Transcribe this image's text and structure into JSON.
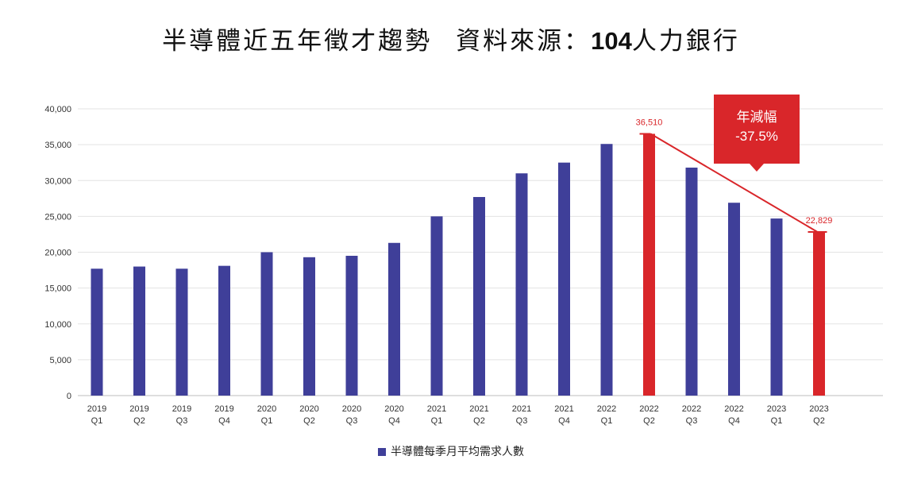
{
  "title": {
    "main": "半導體近五年徵才趨勢",
    "source_label": "資料來源：",
    "source_number": "104",
    "source_name": "人力銀行"
  },
  "chart_data": {
    "type": "bar",
    "title": "半導體近五年徵才趨勢 資料來源：104人力銀行",
    "xlabel": "",
    "ylabel": "",
    "ylim": [
      0,
      40000
    ],
    "yticks": [
      "0",
      "5,000",
      "10,000",
      "15,000",
      "20,000",
      "25,000",
      "30,000",
      "35,000",
      "40,000"
    ],
    "ytick_values": [
      0,
      5000,
      10000,
      15000,
      20000,
      25000,
      30000,
      35000,
      40000
    ],
    "grid": true,
    "categories": [
      [
        "2019",
        "Q1"
      ],
      [
        "2019",
        "Q2"
      ],
      [
        "2019",
        "Q3"
      ],
      [
        "2019",
        "Q4"
      ],
      [
        "2020",
        "Q1"
      ],
      [
        "2020",
        "Q2"
      ],
      [
        "2020",
        "Q3"
      ],
      [
        "2020",
        "Q4"
      ],
      [
        "2021",
        "Q1"
      ],
      [
        "2021",
        "Q2"
      ],
      [
        "2021",
        "Q3"
      ],
      [
        "2021",
        "Q4"
      ],
      [
        "2022",
        "Q1"
      ],
      [
        "2022",
        "Q2"
      ],
      [
        "2022",
        "Q3"
      ],
      [
        "2022",
        "Q4"
      ],
      [
        "2023",
        "Q1"
      ],
      [
        "2023",
        "Q2"
      ]
    ],
    "series": [
      {
        "name": "半導體每季月平均需求人數",
        "values": [
          17700,
          18000,
          17700,
          18100,
          20000,
          19300,
          19500,
          21300,
          25000,
          27700,
          31000,
          32500,
          35100,
          36510,
          31800,
          26900,
          24700,
          22829
        ]
      }
    ],
    "colors": {
      "default": "#3f3f99",
      "highlight": "#d9262a"
    },
    "highlighted_indices": [
      13,
      17
    ],
    "data_labels": [
      {
        "index": 13,
        "text": "36,510"
      },
      {
        "index": 17,
        "text": "22,829"
      }
    ],
    "annotation": {
      "line_text": "年減幅",
      "value_text": "-37.5%",
      "from_index": 13,
      "to_index": 17
    },
    "legend_position": "bottom-center"
  }
}
